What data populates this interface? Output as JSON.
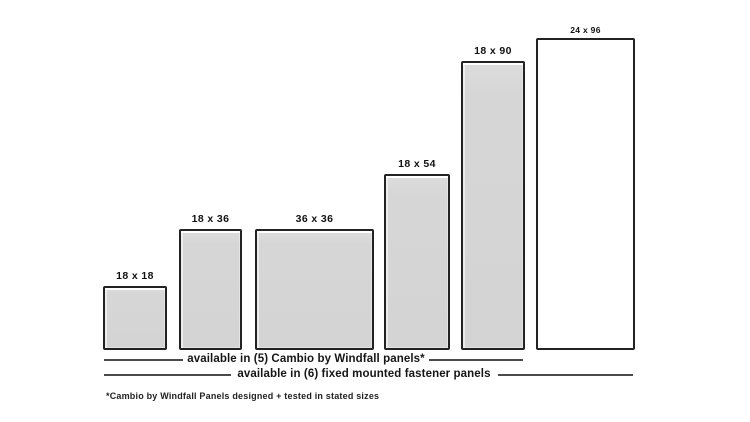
{
  "diagram": {
    "panels": [
      {
        "label": "18 x 18",
        "width_in": 18,
        "height_in": 18,
        "style": "cambio"
      },
      {
        "label": "18 x 36",
        "width_in": 18,
        "height_in": 36,
        "style": "cambio"
      },
      {
        "label": "36 x 36",
        "width_in": 36,
        "height_in": 36,
        "style": "cambio"
      },
      {
        "label": "18 x 54",
        "width_in": 18,
        "height_in": 54,
        "style": "cambio"
      },
      {
        "label": "18 x 90",
        "width_in": 18,
        "height_in": 90,
        "style": "cambio"
      },
      {
        "label": "24 x 96",
        "width_in": 24,
        "height_in": 96,
        "style": "fixed-only"
      }
    ],
    "annotations": {
      "cambio_line": "available in (5) Cambio by Windfall panels*",
      "fixed_line": "available in (6) fixed mounted fastener panels",
      "footnote": "*Cambio by Windfall Panels designed + tested in stated sizes"
    },
    "colors": {
      "panel_fill": "#d6d6d6",
      "panel_border": "#222222",
      "unfilled_panel_fill": "#ffffff",
      "annotation_line": "#4a4a4a",
      "text": "#161616",
      "background": "#ffffff"
    }
  }
}
